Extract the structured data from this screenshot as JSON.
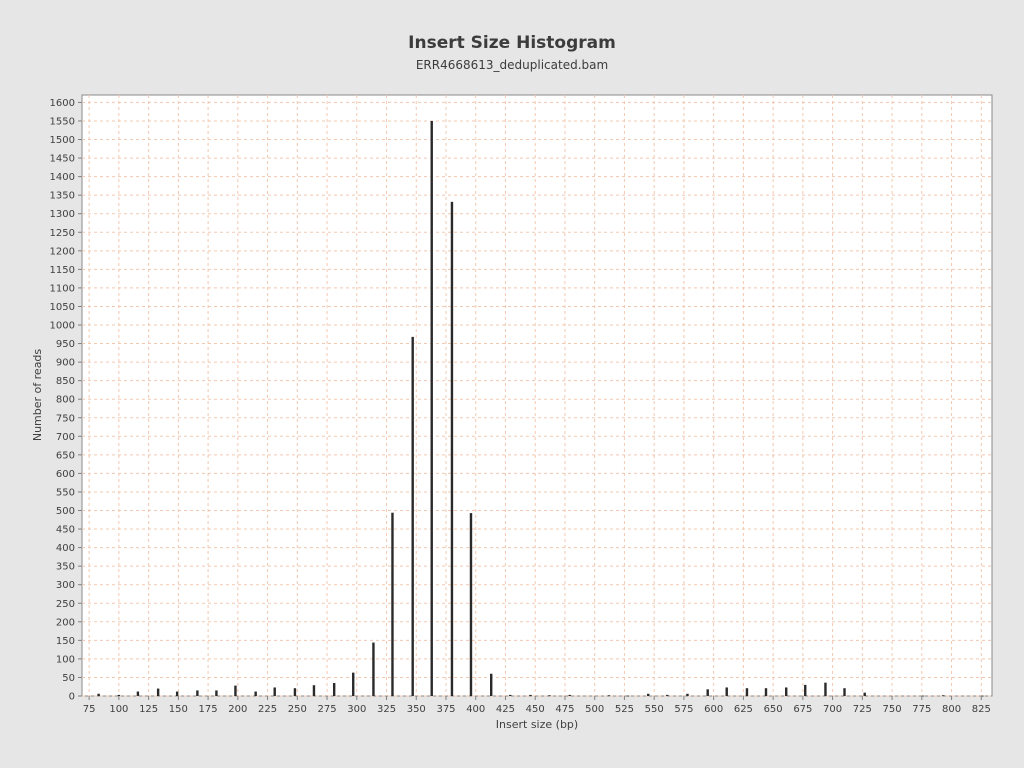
{
  "chart_data": {
    "type": "bar",
    "title": "Insert Size Histogram",
    "subtitle": "ERR4668613_deduplicated.bam",
    "xlabel": "Insert size (bp)",
    "ylabel": "Number of reads",
    "xlim": [
      69,
      834
    ],
    "ylim": [
      0,
      1620
    ],
    "xticks": [
      75,
      100,
      125,
      150,
      175,
      200,
      225,
      250,
      275,
      300,
      325,
      350,
      375,
      400,
      425,
      450,
      475,
      500,
      525,
      550,
      575,
      600,
      625,
      650,
      675,
      700,
      725,
      750,
      775,
      800,
      825
    ],
    "yticks": [
      0,
      50,
      100,
      150,
      200,
      250,
      300,
      350,
      400,
      450,
      500,
      550,
      600,
      650,
      700,
      750,
      800,
      850,
      900,
      950,
      1000,
      1050,
      1100,
      1150,
      1200,
      1250,
      1300,
      1350,
      1400,
      1450,
      1500,
      1550,
      1600
    ],
    "grid": true,
    "x": [
      83,
      100,
      116,
      133,
      149,
      166,
      182,
      198,
      215,
      231,
      248,
      264,
      281,
      297,
      314,
      330,
      347,
      363,
      380,
      396,
      413,
      429,
      446,
      462,
      479,
      512,
      528,
      545,
      561,
      578,
      595,
      611,
      628,
      644,
      661,
      677,
      694,
      710,
      727,
      776,
      793,
      826
    ],
    "values": [
      6,
      3,
      12,
      20,
      12,
      15,
      15,
      28,
      12,
      23,
      21,
      29,
      35,
      63,
      144,
      494,
      968,
      1550,
      1332,
      493,
      60,
      3,
      3,
      2,
      3,
      2,
      1,
      6,
      3,
      6,
      18,
      23,
      21,
      21,
      23,
      30,
      36,
      21,
      9,
      1,
      2,
      1
    ]
  },
  "colors": {
    "background": "#e6e6e6",
    "plot_background": "#ffffff",
    "grid": "#f3c8b0",
    "bar": "#2a2a2a",
    "text": "#404040"
  }
}
